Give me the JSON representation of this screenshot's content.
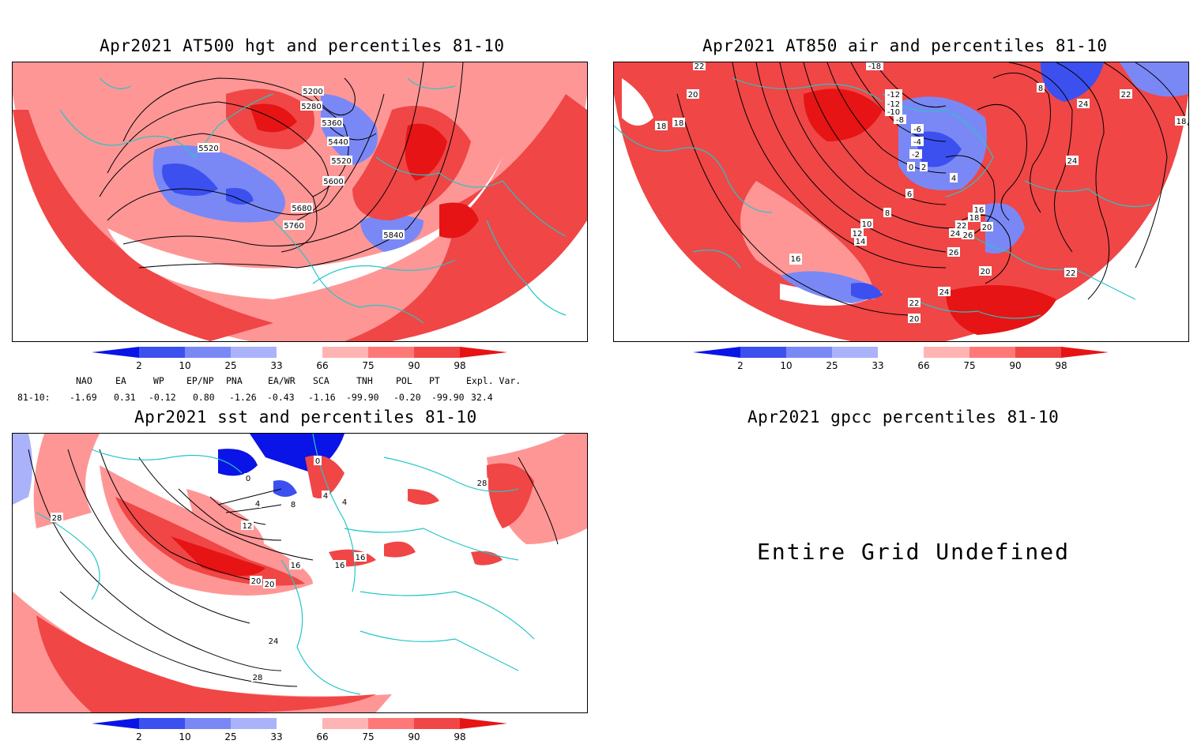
{
  "panels": {
    "p1": {
      "title": "Apr2021 AT500 hgt and percentiles 81-10",
      "contour_labels": [
        "5200",
        "5280",
        "5360",
        "5440",
        "5520",
        "5520",
        "5600",
        "5680",
        "5760",
        "5840"
      ]
    },
    "p2": {
      "title": "Apr2021 AT850 air and percentiles 81-10",
      "contour_labels": [
        "22",
        "20",
        "18",
        "18",
        "16",
        "-18",
        "-12",
        "-12",
        "-10",
        "-8",
        "-6",
        "-4",
        "-2",
        "0",
        "2",
        "4",
        "6",
        "8",
        "10",
        "12",
        "14",
        "16",
        "16",
        "18",
        "20",
        "22",
        "24",
        "26",
        "26",
        "20",
        "22",
        "22",
        "20",
        "24",
        "24",
        "22",
        "18",
        "8",
        "24"
      ]
    },
    "p3": {
      "title": "Apr2021 sst and percentiles 81-10",
      "contour_labels": [
        "0",
        "0",
        "4",
        "4",
        "8",
        "12",
        "4",
        "28",
        "16",
        "16",
        "16",
        "20",
        "20",
        "24",
        "28",
        "28"
      ]
    },
    "p4": {
      "title": "Apr2021 gpcc percentiles 81-10",
      "message": "Entire Grid Undefined"
    }
  },
  "colorbar": {
    "ticks": [
      "2",
      "10",
      "25",
      "33",
      "66",
      "75",
      "90",
      "98"
    ],
    "colors": [
      "#0a14e6",
      "#3c50f0",
      "#7a88f5",
      "#aab2fa",
      "#ffb4b4",
      "#ff7878",
      "#f04646",
      "#e61414"
    ]
  },
  "indices": {
    "headers": [
      "NAO",
      "EA",
      "WP",
      "EP/NP",
      "PNA",
      "EA/WR",
      "SCA",
      "TNH",
      "POL",
      "PT",
      "Expl. Var."
    ],
    "row_label": "81-10:",
    "values": [
      "-1.69",
      "0.31",
      "-0.12",
      "0.80",
      "-1.26",
      "-0.43",
      "-1.16",
      "-99.90",
      "-0.20",
      "-99.90",
      "32.4"
    ]
  }
}
